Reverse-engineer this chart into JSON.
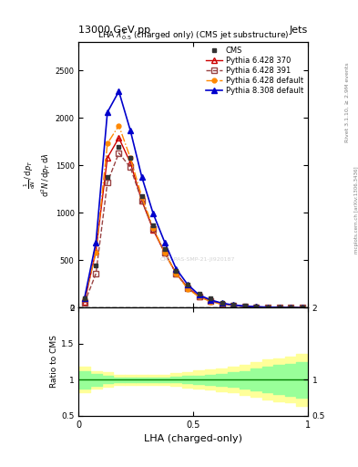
{
  "title": "13000 GeV pp",
  "title_right": "Jets",
  "plot_title": "LHA $\\lambda^{1}_{0.5}$ (charged only) (CMS jet substructure)",
  "xlabel": "LHA (charged-only)",
  "ylim_main": [
    0,
    2800
  ],
  "ylim_ratio": [
    0.5,
    2.0
  ],
  "x_data": [
    0.025,
    0.075,
    0.125,
    0.175,
    0.225,
    0.275,
    0.325,
    0.375,
    0.425,
    0.475,
    0.525,
    0.575,
    0.625,
    0.675,
    0.725,
    0.775,
    0.825,
    0.875,
    0.925,
    0.975
  ],
  "cms_data": [
    100,
    450,
    1380,
    1700,
    1580,
    1180,
    870,
    620,
    390,
    240,
    145,
    95,
    55,
    32,
    20,
    12,
    8,
    4,
    2,
    1
  ],
  "pythia_370": [
    60,
    600,
    1580,
    1790,
    1530,
    1130,
    820,
    580,
    360,
    215,
    120,
    72,
    40,
    26,
    14,
    9,
    5,
    3,
    1,
    0
  ],
  "pythia_391": [
    50,
    360,
    1320,
    1630,
    1480,
    1130,
    830,
    580,
    360,
    210,
    120,
    68,
    37,
    24,
    13,
    8,
    4,
    2,
    1,
    0
  ],
  "pythia_default_6": [
    90,
    580,
    1730,
    1920,
    1580,
    1170,
    840,
    580,
    360,
    200,
    115,
    65,
    36,
    23,
    12,
    7,
    4,
    2,
    1,
    0
  ],
  "pythia_308": [
    100,
    690,
    2060,
    2280,
    1870,
    1380,
    990,
    690,
    410,
    245,
    135,
    82,
    48,
    29,
    17,
    10,
    6,
    3,
    1,
    0
  ],
  "ratio_cms_err_lo": [
    0.88,
    0.92,
    0.95,
    0.97,
    0.97,
    0.97,
    0.97,
    0.97,
    0.96,
    0.95,
    0.94,
    0.93,
    0.92,
    0.9,
    0.88,
    0.85,
    0.82,
    0.8,
    0.78,
    0.75
  ],
  "ratio_cms_err_hi": [
    1.12,
    1.08,
    1.05,
    1.03,
    1.03,
    1.03,
    1.03,
    1.03,
    1.04,
    1.05,
    1.06,
    1.07,
    1.08,
    1.1,
    1.12,
    1.15,
    1.18,
    1.2,
    1.22,
    1.25
  ],
  "ratio_cms_err_lo2": [
    0.82,
    0.88,
    0.9,
    0.93,
    0.93,
    0.93,
    0.93,
    0.93,
    0.91,
    0.89,
    0.87,
    0.86,
    0.84,
    0.82,
    0.79,
    0.76,
    0.72,
    0.7,
    0.68,
    0.64
  ],
  "ratio_cms_err_hi2": [
    1.18,
    1.12,
    1.1,
    1.07,
    1.07,
    1.07,
    1.07,
    1.07,
    1.09,
    1.11,
    1.13,
    1.14,
    1.16,
    1.18,
    1.21,
    1.24,
    1.28,
    1.3,
    1.32,
    1.36
  ],
  "colors": {
    "cms": "#333333",
    "p370": "#cc0000",
    "p391": "#994444",
    "p6default": "#ff8800",
    "p8default": "#0000cc"
  },
  "right_label1": "Rivet 3.1.10, ≥ 2.9M events",
  "right_label2": "mcplots.cern.ch [arXiv:1306.3436]",
  "watermark": "CMS-PAS-SMP-21-JI920187",
  "ylabel_lines": [
    "mathrm d^{2}N",
    "mathrm d p_{T} mathrm d lambda",
    "1",
    "mathrm d N / mathrm d p_{T} mathrm d lambda"
  ]
}
